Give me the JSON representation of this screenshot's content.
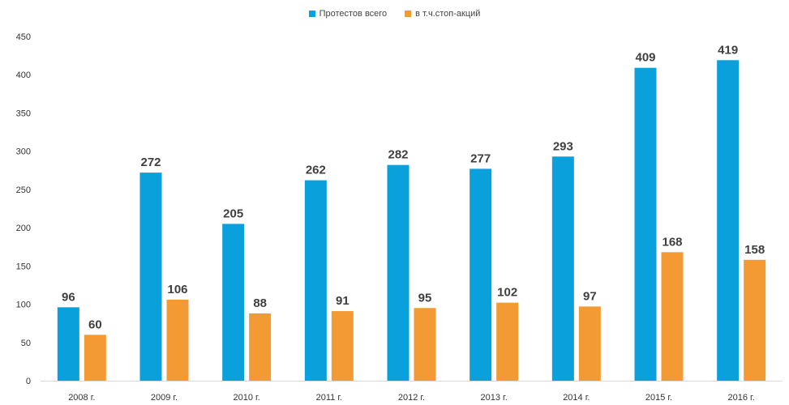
{
  "chart_data": {
    "type": "bar",
    "title": "",
    "xlabel": "",
    "ylabel": "",
    "categories": [
      "2008 г.",
      "2009 г.",
      "2010 г.",
      "2011 г.",
      "2012 г.",
      "2013 г.",
      "2014 г.",
      "2015 г.",
      "2016 г."
    ],
    "series": [
      {
        "name": "Протестов всего",
        "color": "#0aa0dc",
        "values": [
          96,
          272,
          205,
          262,
          282,
          277,
          293,
          409,
          419
        ]
      },
      {
        "name": "в т.ч.стоп-акций",
        "color": "#f39a35",
        "values": [
          60,
          106,
          88,
          91,
          95,
          102,
          97,
          168,
          158
        ]
      }
    ],
    "ylim": [
      0,
      450
    ],
    "yticks": [
      0,
      50,
      100,
      150,
      200,
      250,
      300,
      350,
      400,
      450
    ],
    "grid": false,
    "legend_position": "top-center",
    "data_labels": true
  }
}
